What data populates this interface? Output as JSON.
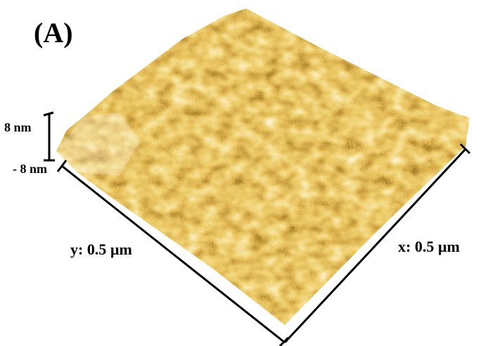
{
  "panel_label": "(A)",
  "z_axis": {
    "top_label": "8 nm",
    "bottom_label": "- 8 nm"
  },
  "y_axis": {
    "label": "y: 0.5 µm"
  },
  "x_axis": {
    "label": "x: 0.5 µm"
  }
}
